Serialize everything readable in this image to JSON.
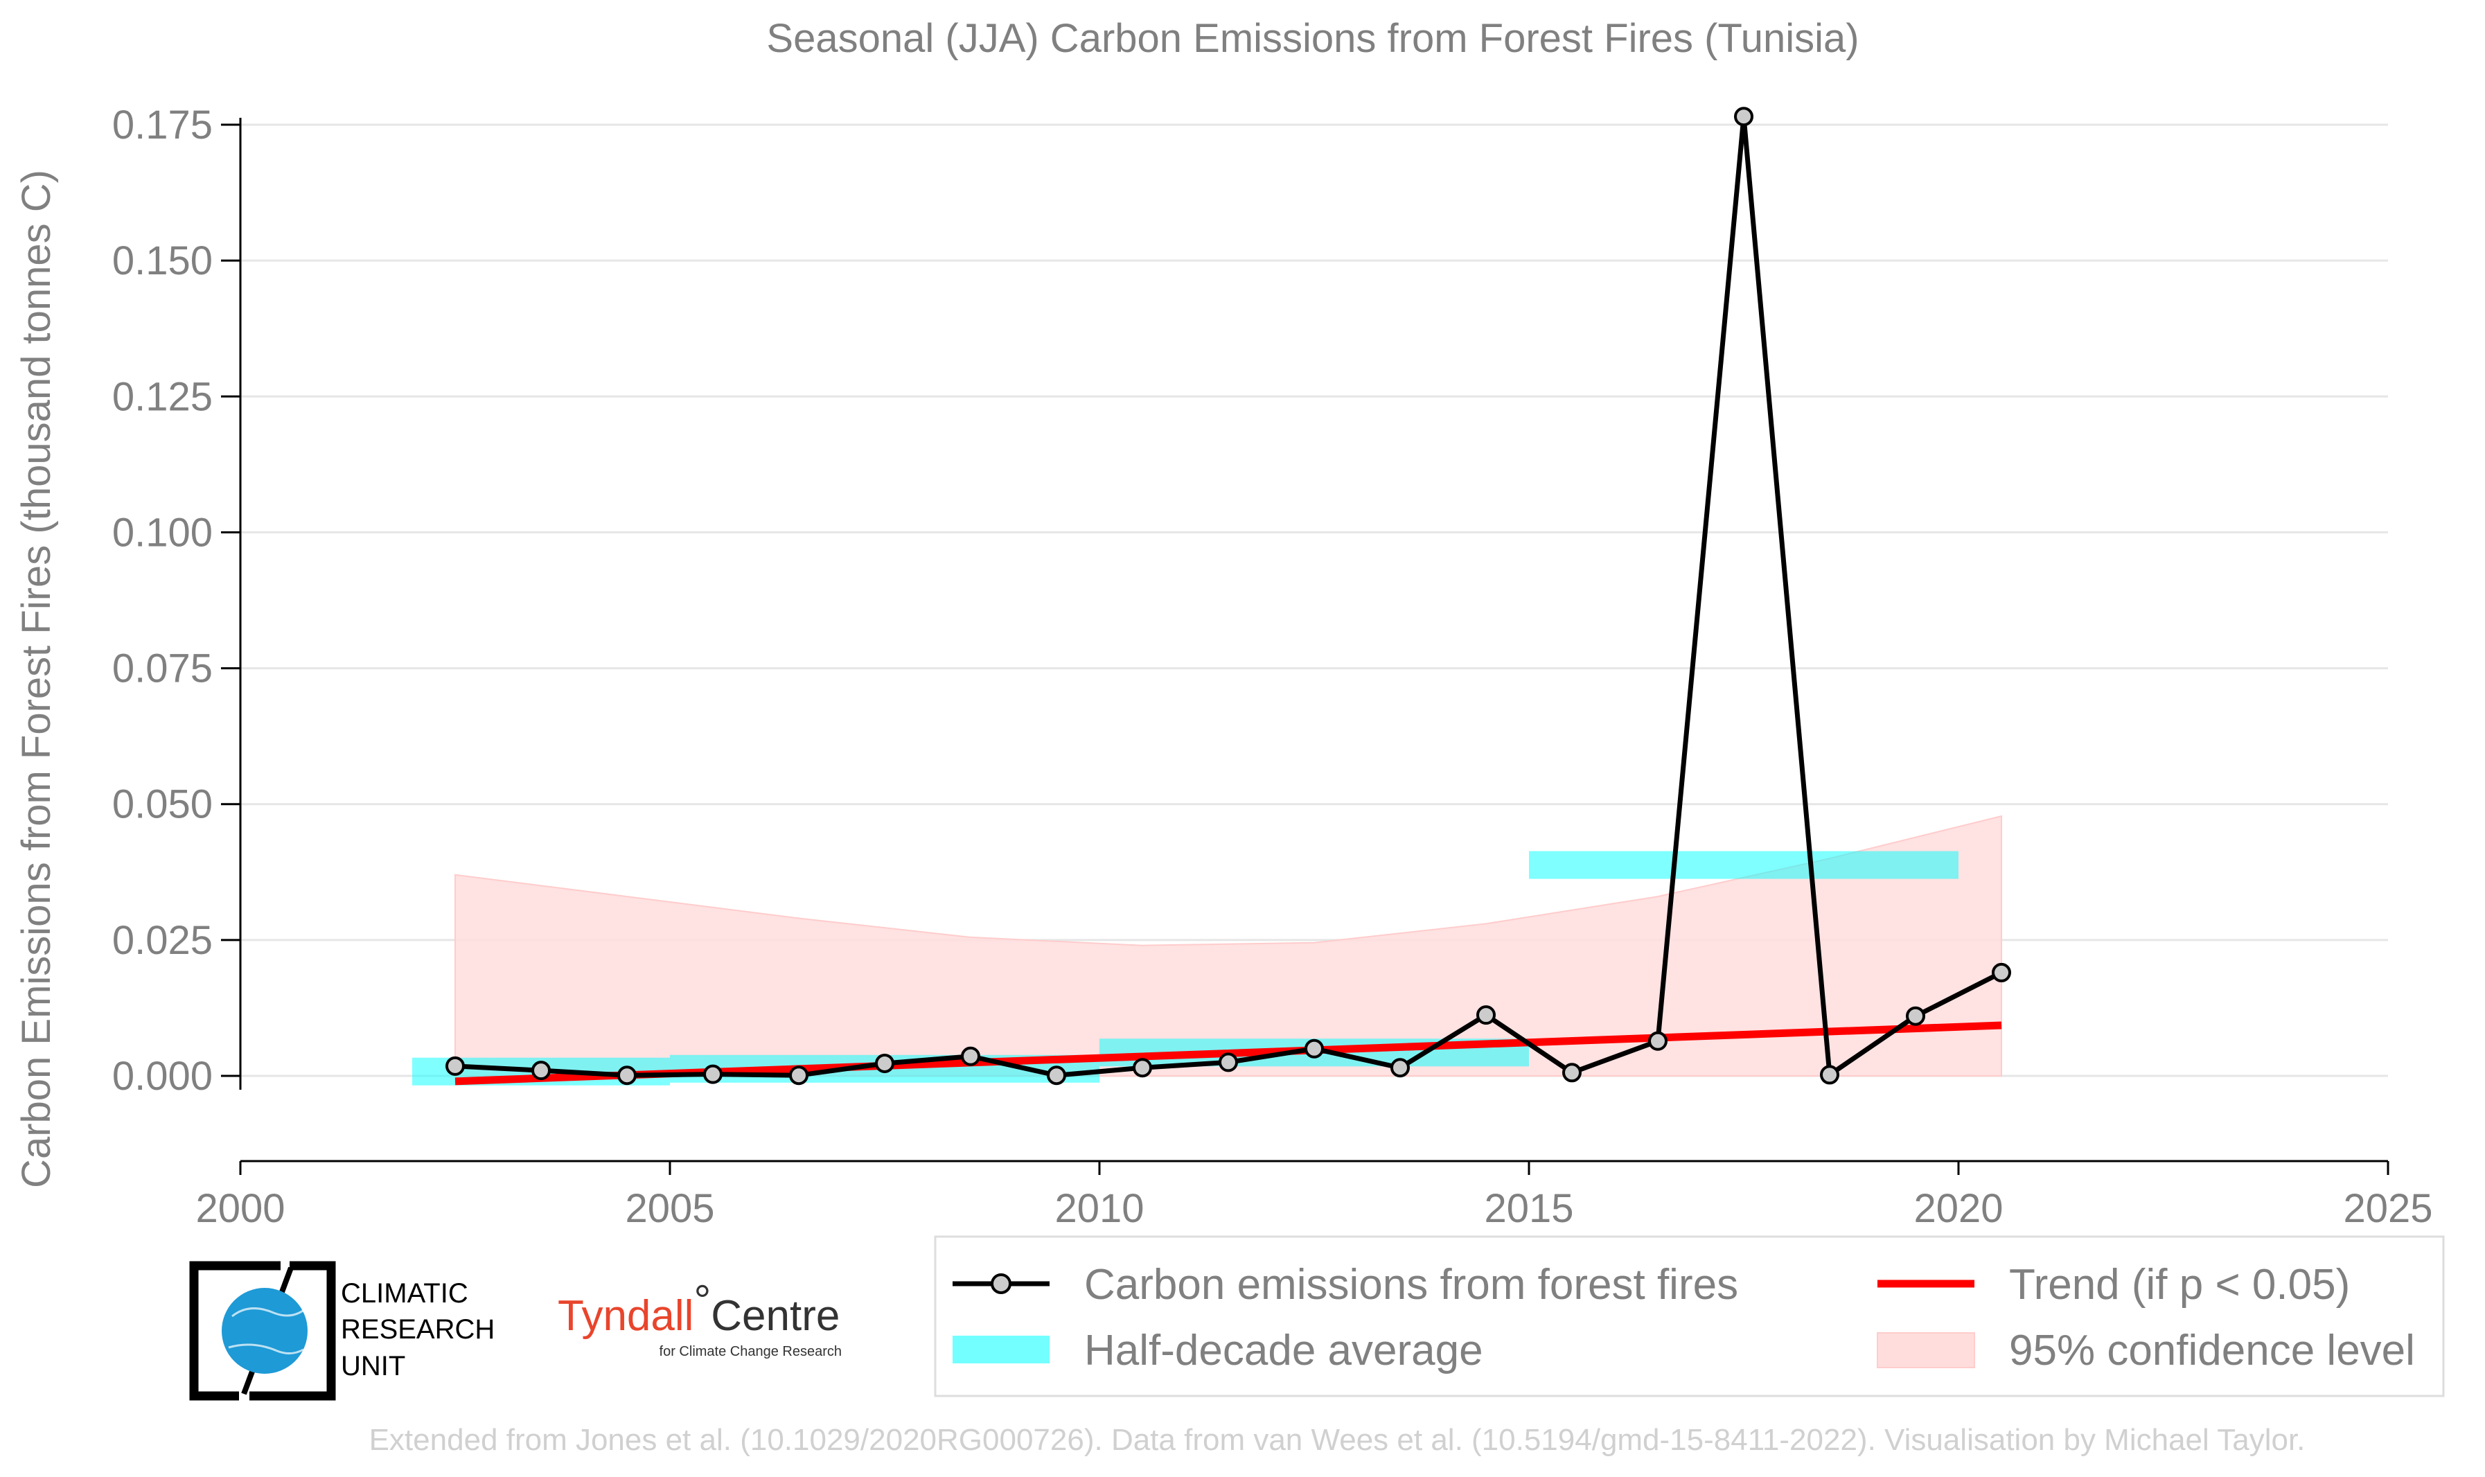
{
  "chart_data": {
    "type": "line",
    "title": "Seasonal (JJA) Carbon Emissions from Forest Fires (Tunisia)",
    "xlabel": "",
    "ylabel": "Carbon Emissions from Forest Fires (thousand tonnes C)",
    "xlim": [
      2000,
      2025
    ],
    "ylim": [
      -0.015,
      0.175
    ],
    "x_ticks": [
      "2000",
      "2005",
      "2010",
      "2015",
      "2020",
      "2025"
    ],
    "y_ticks": [
      "0.000",
      "0.025",
      "0.050",
      "0.075",
      "0.100",
      "0.125",
      "0.150",
      "0.175"
    ],
    "grid": "horizontal",
    "legend_position": "bottom-right",
    "series": [
      {
        "name": "Carbon emissions from forest fires",
        "color": "#000000",
        "x": [
          2002.5,
          2003.5,
          2004.5,
          2005.5,
          2006.5,
          2007.5,
          2008.5,
          2009.5,
          2010.5,
          2011.5,
          2012.5,
          2013.5,
          2014.5,
          2015.5,
          2016.5,
          2017.5,
          2018.5,
          2019.5,
          2020.5
        ],
        "values": [
          0.0018,
          0.001,
          0.0001,
          0.0003,
          0.0001,
          0.0023,
          0.0036,
          0.0001,
          0.0015,
          0.0025,
          0.005,
          0.0015,
          0.0112,
          0.0006,
          0.0064,
          0.1765,
          0.0002,
          0.011,
          0.019
        ]
      },
      {
        "name": "Trend (if p < 0.05)",
        "color": "#ff0000",
        "x": [
          2002.5,
          2020.5
        ],
        "values": [
          -0.001,
          0.0093
        ]
      }
    ],
    "half_decade_average": {
      "name": "Half-decade average",
      "color": "#00ffff",
      "periods": [
        {
          "start": 2002,
          "end": 2005,
          "value": 0.0008
        },
        {
          "start": 2005,
          "end": 2010,
          "value": 0.0013
        },
        {
          "start": 2010,
          "end": 2015,
          "value": 0.0043
        },
        {
          "start": 2015,
          "end": 2020,
          "value": 0.0388
        }
      ]
    },
    "confidence_band": {
      "name": "95% confidence level",
      "color": "#ffdddd",
      "x": [
        2002.5,
        2004.5,
        2006.5,
        2008.5,
        2010.5,
        2012.5,
        2014.5,
        2016.5,
        2018.5,
        2020.5
      ],
      "upper": [
        0.037,
        0.033,
        0.029,
        0.0255,
        0.024,
        0.0245,
        0.028,
        0.033,
        0.04,
        0.0478
      ]
    }
  },
  "legend": {
    "items": [
      {
        "label": "Carbon emissions from forest fires"
      },
      {
        "label": "Trend (if p < 0.05)"
      },
      {
        "label": "Half-decade average"
      },
      {
        "label": "95% confidence level"
      }
    ]
  },
  "logos": {
    "cru": {
      "line1": "CLIMATIC",
      "line2": "RESEARCH",
      "line3": "UNIT"
    },
    "tyndall": {
      "name": "Tyndall",
      "degree": "°",
      "centre": "Centre",
      "subtitle": "for Climate Change Research"
    }
  },
  "footer": {
    "credit": "Extended from Jones et al. (10.1029/2020RG000726). Data from van Wees et al. (10.5194/gmd-15-8411-2022). Visualisation by Michael Taylor."
  }
}
